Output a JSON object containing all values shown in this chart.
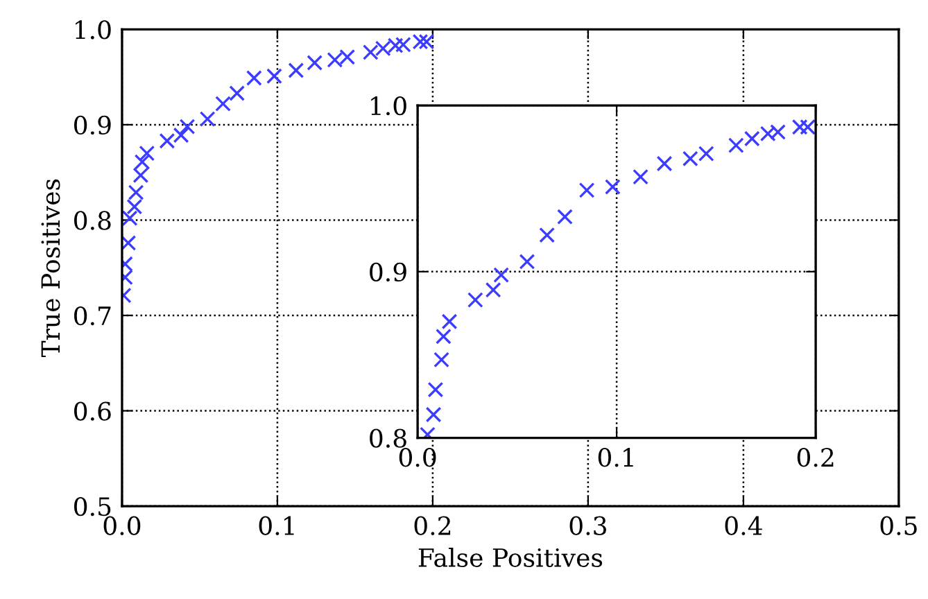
{
  "chart_data": [
    {
      "type": "scatter",
      "xlabel": "False Positives",
      "ylabel": "True Positives",
      "xlim": [
        0.0,
        0.5
      ],
      "ylim": [
        0.5,
        1.0
      ],
      "xticks": [
        {
          "value": 0,
          "label": "0.0"
        },
        0.1,
        0.2,
        0.3,
        0.4,
        0.5
      ],
      "yticks": [
        0.5,
        0.6,
        0.7,
        0.8,
        0.9,
        {
          "value": 1,
          "label": "1.0"
        }
      ],
      "grid": true,
      "marker": "cross",
      "series": [
        {
          "color": "#3c3cff",
          "x": [
            0.001,
            0.002,
            0.002,
            0.004,
            0.005,
            0.008,
            0.009,
            0.012,
            0.013,
            0.016,
            0.029,
            0.038,
            0.042,
            0.055,
            0.065,
            0.074,
            0.085,
            0.098,
            0.112,
            0.124,
            0.137,
            0.145,
            0.16,
            0.168,
            0.176,
            0.181,
            0.192,
            0.196
          ],
          "values": [
            0.721,
            0.74,
            0.754,
            0.776,
            0.802,
            0.814,
            0.829,
            0.847,
            0.861,
            0.87,
            0.883,
            0.889,
            0.898,
            0.906,
            0.922,
            0.933,
            0.949,
            0.951,
            0.957,
            0.965,
            0.968,
            0.971,
            0.976,
            0.98,
            0.983,
            0.984,
            0.987,
            0.987
          ]
        }
      ]
    },
    {
      "type": "scatter",
      "xlim": [
        0.0,
        0.2
      ],
      "ylim": [
        0.8,
        1.0
      ],
      "xticks": [
        {
          "value": 0,
          "label": "0.0"
        },
        0.1,
        0.2
      ],
      "yticks": [
        0.8,
        0.9,
        {
          "value": 1,
          "label": "1.0"
        }
      ],
      "grid": true,
      "marker": "cross",
      "series": [
        {
          "color": "#3c3cff",
          "x": [
            0.005,
            0.008,
            0.009,
            0.012,
            0.013,
            0.016,
            0.029,
            0.038,
            0.042,
            0.055,
            0.065,
            0.074,
            0.085,
            0.098,
            0.112,
            0.124,
            0.137,
            0.145,
            0.16,
            0.168,
            0.176,
            0.181,
            0.192,
            0.196
          ],
          "values": [
            0.802,
            0.814,
            0.829,
            0.847,
            0.861,
            0.87,
            0.883,
            0.889,
            0.898,
            0.906,
            0.922,
            0.933,
            0.949,
            0.951,
            0.957,
            0.965,
            0.968,
            0.971,
            0.976,
            0.98,
            0.983,
            0.984,
            0.987,
            0.987
          ]
        }
      ]
    }
  ]
}
